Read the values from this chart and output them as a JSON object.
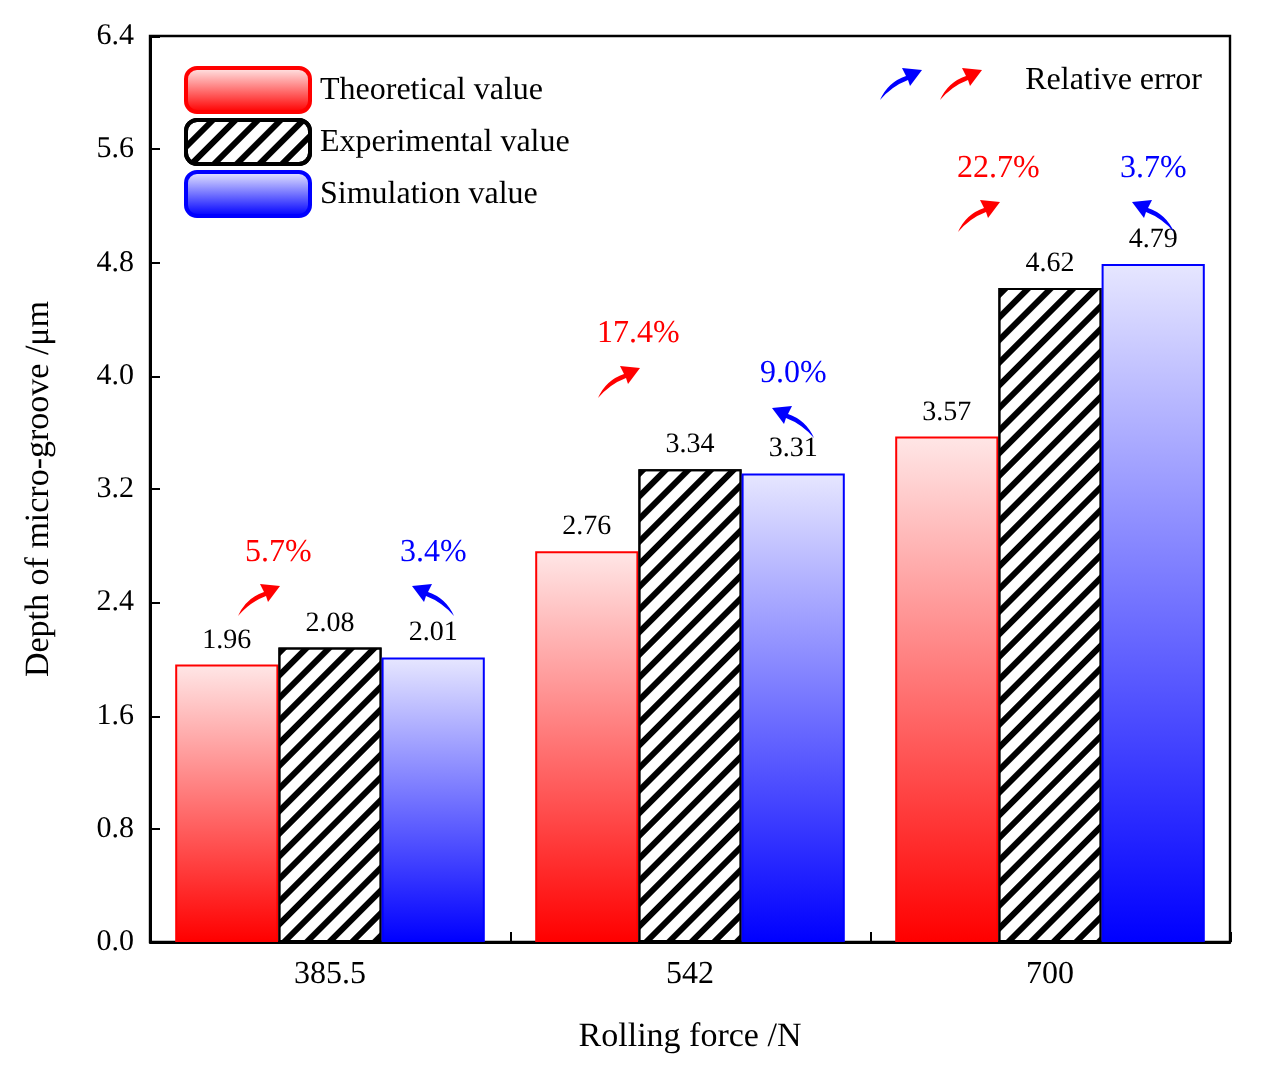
{
  "chart_data": {
    "type": "bar",
    "xlabel": "Rolling force /N",
    "ylabel": "Depth of micro-groove /μm",
    "categories": [
      "385.5",
      "542",
      "700"
    ],
    "series": [
      {
        "name": "Theoretical value",
        "color": "#ff0000",
        "values": [
          1.96,
          2.76,
          3.57
        ]
      },
      {
        "name": "Experimental value",
        "color": "#000000",
        "values": [
          2.08,
          3.34,
          4.62
        ]
      },
      {
        "name": "Simulation value",
        "color": "#0000ff",
        "values": [
          2.01,
          3.31,
          4.79
        ]
      }
    ],
    "ylim": [
      0,
      6.4
    ],
    "yticks": [
      {
        "value": 0,
        "label": "0.0"
      },
      {
        "value": 0.8,
        "label": "0.8"
      },
      {
        "value": 1.6,
        "label": "1.6"
      },
      {
        "value": 2.4,
        "label": "2.4"
      },
      {
        "value": 3.2,
        "label": "3.2"
      },
      {
        "value": 4.0,
        "label": "4.0"
      },
      {
        "value": 4.8,
        "label": "4.8"
      },
      {
        "value": 5.6,
        "label": "5.6"
      },
      {
        "value": 6.4,
        "label": "6.4"
      }
    ],
    "data_labels": true,
    "legend": "top left",
    "grid": false,
    "annotations": [
      "5.7%",
      "3.4%",
      "17.4%",
      "9.0%",
      "22.7%",
      "3.7%",
      "Relative error"
    ]
  }
}
